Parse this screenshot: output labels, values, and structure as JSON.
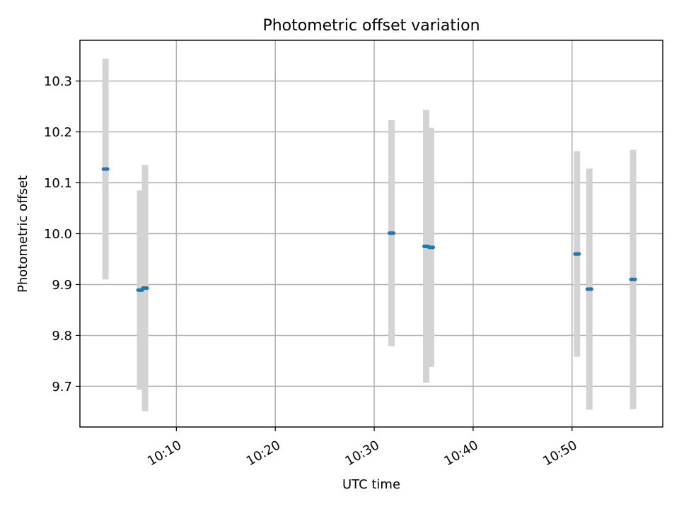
{
  "chart_data": {
    "type": "scatter",
    "title": "Photometric offset variation",
    "xlabel": "UTC time",
    "ylabel": "Photometric offset",
    "x_unit": "HH:MM",
    "xlim": [
      "10:00:15",
      "10:59:10"
    ],
    "ylim": [
      9.62,
      10.38
    ],
    "grid": true,
    "x_ticks": [
      "10:10",
      "10:20",
      "10:30",
      "10:40",
      "10:50"
    ],
    "y_ticks": [
      "9.7",
      "9.8",
      "9.9",
      "10.0",
      "10.1",
      "10.2",
      "10.3"
    ],
    "colors": {
      "point": "#1f77b4",
      "errorbar": "#d3d3d3",
      "grid": "#b0b0b0",
      "axes": "#000000"
    },
    "points": [
      {
        "x": "10:02:50",
        "y": 10.127,
        "err": 0.217
      },
      {
        "x": "10:06:20",
        "y": 9.889,
        "err": 0.196
      },
      {
        "x": "10:06:50",
        "y": 9.893,
        "err": 0.242
      },
      {
        "x": "10:31:45",
        "y": 10.001,
        "err": 0.222
      },
      {
        "x": "10:35:15",
        "y": 9.975,
        "err": 0.268
      },
      {
        "x": "10:35:45",
        "y": 9.973,
        "err": 0.235
      },
      {
        "x": "10:50:30",
        "y": 9.96,
        "err": 0.202
      },
      {
        "x": "10:51:45",
        "y": 9.891,
        "err": 0.237
      },
      {
        "x": "10:56:10",
        "y": 9.91,
        "err": 0.255
      }
    ]
  }
}
